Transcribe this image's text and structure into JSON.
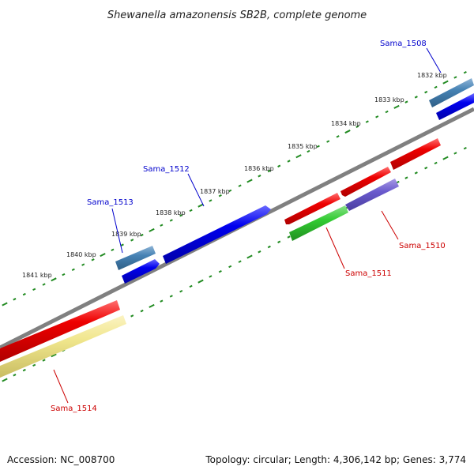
{
  "title": "Shewanella amazonensis SB2B, complete genome",
  "accession": "Accession: NC_008700",
  "summary": "Topology: circular; Length: 4,306,142 bp; Genes: 3,774",
  "tick_labels": [
    "1832 kbp",
    "1833 kbp",
    "1834 kbp",
    "1835 kbp",
    "1836 kbp",
    "1837 kbp",
    "1838 kbp",
    "1839 kbp",
    "1840 kbp",
    "1841 kbp"
  ],
  "gene_labels": {
    "sama_1508": "Sama_1508",
    "sama_1510": "Sama_1510",
    "sama_1511": "Sama_1511",
    "sama_1512": "Sama_1512",
    "sama_1513": "Sama_1513",
    "sama_1514": "Sama_1514"
  },
  "colors": {
    "backbone": "#808080",
    "cds_forward": "#0000ee",
    "cds_reverse": "#ee0000",
    "trna_like": "#4682b4",
    "label_forward": "#0000cc",
    "label_reverse": "#cc0000",
    "dots": "#228b22"
  }
}
